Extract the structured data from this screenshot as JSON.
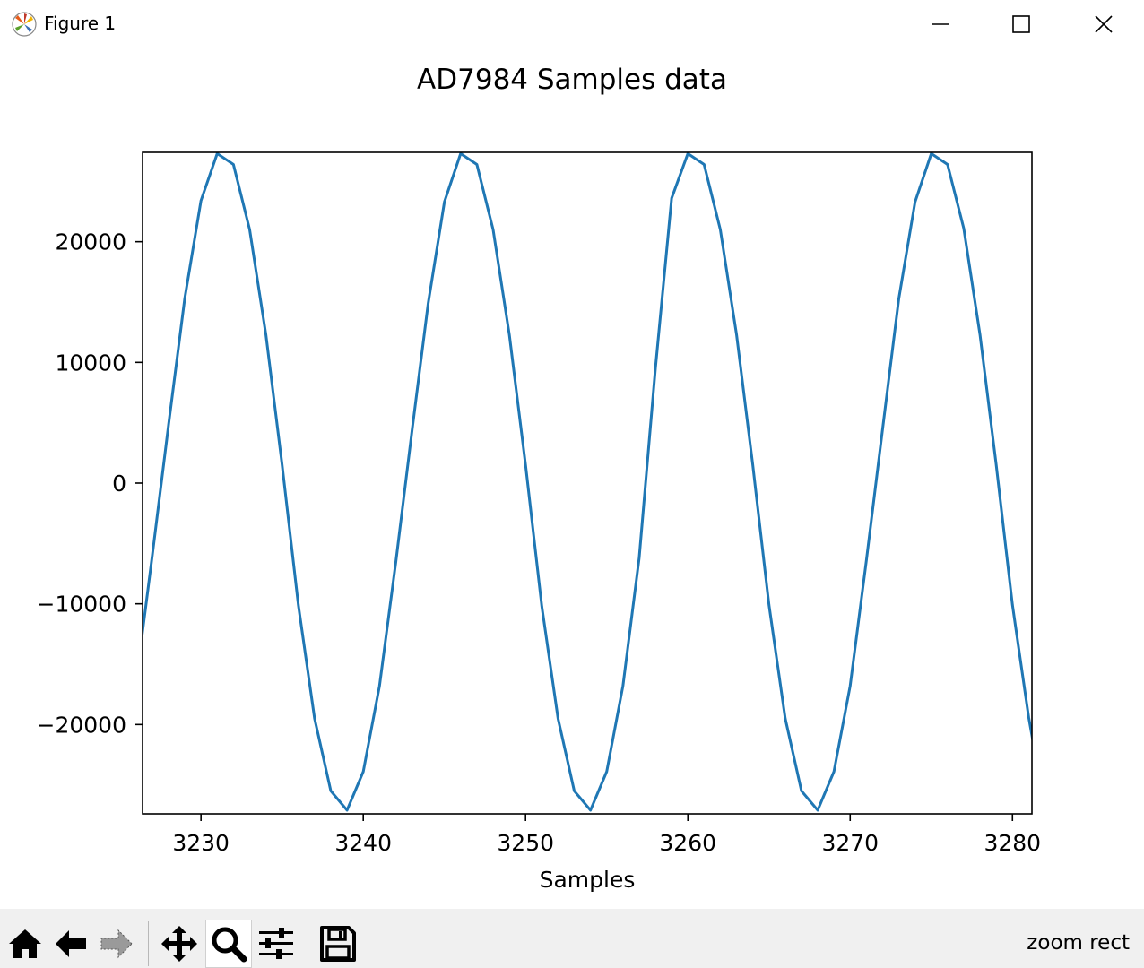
{
  "window": {
    "title": "Figure 1",
    "icons": [
      "matplotlib-logo-icon",
      "minimize-icon",
      "maximize-icon",
      "close-icon"
    ]
  },
  "toolbar": {
    "buttons": [
      "home-icon",
      "back-arrow-icon",
      "forward-arrow-icon",
      "pan-move-icon",
      "zoom-magnifier-icon",
      "configure-subplots-icon",
      "save-floppy-icon"
    ],
    "active": "zoom-magnifier-icon",
    "mode_text": "zoom rect"
  },
  "chart_data": {
    "type": "line",
    "title": "AD7984 Samples data",
    "xlabel": "Samples",
    "ylabel": "",
    "xlim": [
      3226.4,
      3281.2
    ],
    "ylim": [
      -27400,
      27400
    ],
    "xticks": [
      3230,
      3240,
      3250,
      3260,
      3270,
      3280
    ],
    "yticks": [
      -20000,
      -10000,
      0,
      10000,
      20000
    ],
    "ytick_labels": [
      "−20000",
      "−10000",
      "0",
      "10000",
      "20000"
    ],
    "grid": false,
    "color": "#1f77b4",
    "series": [
      {
        "x": [
          3226,
          3227,
          3228,
          3229,
          3230,
          3231,
          3232,
          3233,
          3234,
          3235,
          3236,
          3237,
          3238,
          3239,
          3240,
          3241,
          3242,
          3243,
          3244,
          3245,
          3246,
          3247,
          3248,
          3249,
          3250,
          3251,
          3252,
          3253,
          3254,
          3255,
          3256,
          3257,
          3258,
          3259,
          3260,
          3261,
          3262,
          3263,
          3264,
          3265,
          3266,
          3267,
          3268,
          3269,
          3270,
          3271,
          3272,
          3273,
          3274,
          3275,
          3276,
          3277,
          3278,
          3279,
          3280,
          3281,
          3282
        ],
        "y": [
          -16500,
          -6000,
          4800,
          15300,
          23400,
          27300,
          26400,
          21000,
          12300,
          1500,
          -10100,
          -19500,
          -25500,
          -27100,
          -23900,
          -16800,
          -6600,
          4300,
          14900,
          23300,
          27300,
          26400,
          21000,
          12300,
          1500,
          -10200,
          -19500,
          -25500,
          -27100,
          -23900,
          -16800,
          -6200,
          9500,
          23600,
          27300,
          26400,
          21000,
          12300,
          1500,
          -10100,
          -19500,
          -25500,
          -27100,
          -23900,
          -16800,
          -6400,
          4500,
          15300,
          23300,
          27300,
          26400,
          21100,
          12300,
          1500,
          -10100,
          -19400,
          -27000
        ]
      }
    ]
  }
}
